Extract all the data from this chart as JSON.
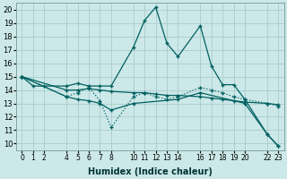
{
  "xlabel": "Humidex (Indice chaleur)",
  "bg_color": "#cce8e8",
  "grid_color": "#aacccc",
  "line_color": "#006060",
  "xlim": [
    -0.5,
    23.5
  ],
  "ylim": [
    9.5,
    20.5
  ],
  "yticks": [
    10,
    11,
    12,
    13,
    14,
    15,
    16,
    17,
    18,
    19,
    20
  ],
  "xtick_positions": [
    0,
    1,
    2,
    4,
    5,
    6,
    7,
    8,
    10,
    11,
    12,
    13,
    14,
    16,
    17,
    18,
    19,
    20,
    22,
    23
  ],
  "xtick_labels": [
    "0",
    "1",
    "2",
    "4",
    "5",
    "6",
    "7",
    "8",
    "10",
    "11",
    "12",
    "13",
    "14",
    "16",
    "17",
    "18",
    "19",
    "20",
    "22",
    "23"
  ],
  "line1_x": [
    0,
    1,
    2,
    4,
    5,
    6,
    7,
    8,
    10,
    11,
    12,
    13,
    14,
    16,
    17,
    18,
    19,
    20,
    22,
    23
  ],
  "line1_y": [
    15.0,
    14.3,
    14.3,
    14.3,
    14.5,
    14.3,
    14.3,
    14.3,
    17.2,
    19.2,
    20.2,
    17.5,
    16.5,
    18.8,
    15.8,
    14.4,
    14.4,
    13.3,
    10.7,
    9.8
  ],
  "line2_x": [
    0,
    4,
    5,
    6,
    7,
    8,
    10,
    11,
    12,
    13,
    14,
    16,
    17,
    18,
    19,
    20,
    22,
    23
  ],
  "line2_y": [
    15.0,
    13.5,
    13.8,
    14.2,
    13.2,
    11.2,
    13.5,
    13.8,
    13.5,
    13.3,
    13.5,
    14.2,
    14.0,
    13.8,
    13.5,
    13.3,
    13.0,
    12.8
  ],
  "line3_x": [
    0,
    4,
    5,
    6,
    7,
    8,
    10,
    11,
    12,
    13,
    14,
    16,
    17,
    18,
    19,
    20,
    22,
    23
  ],
  "line3_y": [
    15.0,
    14.0,
    14.0,
    14.1,
    14.0,
    13.9,
    13.8,
    13.8,
    13.7,
    13.6,
    13.6,
    13.5,
    13.4,
    13.3,
    13.2,
    13.1,
    13.0,
    12.9
  ],
  "line4_x": [
    0,
    4,
    5,
    6,
    7,
    8,
    10,
    14,
    16,
    20,
    22,
    23
  ],
  "line4_y": [
    15.0,
    13.5,
    13.3,
    13.2,
    13.0,
    12.5,
    13.0,
    13.3,
    13.8,
    13.0,
    10.7,
    9.8
  ]
}
